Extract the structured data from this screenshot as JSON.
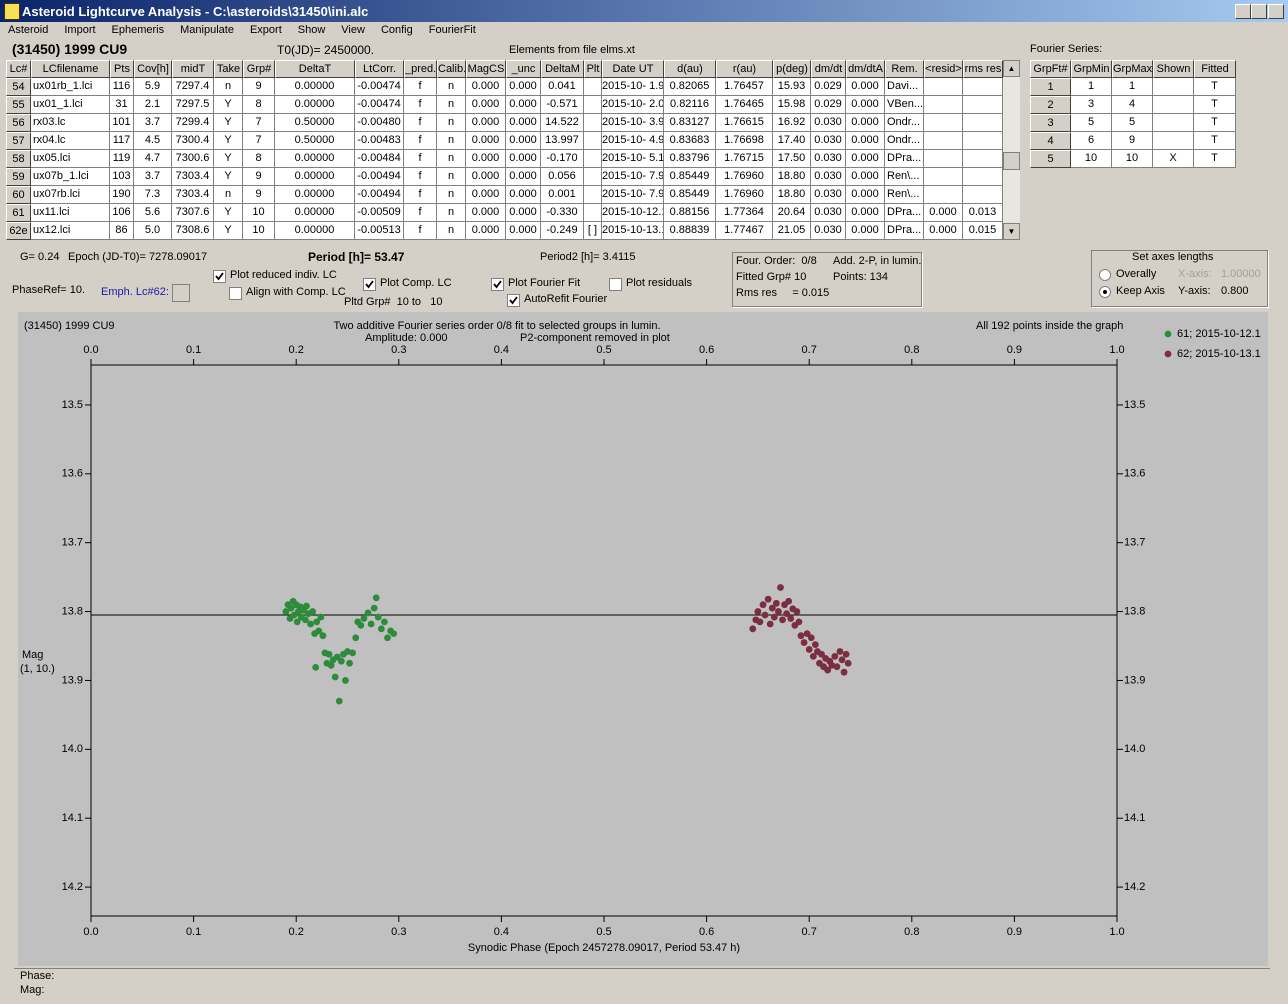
{
  "window": {
    "title": "Asteroid Lightcurve Analysis - C:\\asteroids\\31450\\ini.alc"
  },
  "menu": [
    "Asteroid",
    "Import",
    "Ephemeris",
    "Manipulate",
    "Export",
    "Show",
    "View",
    "Config",
    "FourierFit"
  ],
  "header": {
    "object": "(31450) 1999 CU9",
    "t0": "T0(JD)= 2450000.",
    "elements": "Elements from file elms.xt"
  },
  "table": {
    "columns": [
      "Lc#",
      "LCfilename",
      "Pts",
      "Cov[h]",
      "midT",
      "Take",
      "Grp#",
      "DeltaT",
      "LtCorr.",
      "_pred.",
      "Calib.",
      "MagCS",
      "_unc",
      "DeltaM",
      "Plt",
      "Date UT",
      "d(au)",
      "r(au)",
      "p(deg)",
      "dm/dt",
      "dm/dtA",
      "Rem.",
      "<resid>",
      "rms res"
    ],
    "rows": [
      [
        "54",
        "ux01rb_1.lci",
        "116",
        "5.9",
        "7297.4",
        "n",
        "9",
        "0.00000",
        "-0.00474",
        "f",
        "n",
        "0.000",
        "0.000",
        "0.041",
        null,
        "2015-10- 1.9",
        "0.82065",
        "1.76457",
        "15.93",
        "0.029",
        "0.000",
        "Davi...",
        null,
        null
      ],
      [
        "55",
        "ux01_1.lci",
        "31",
        "2.1",
        "7297.5",
        "Y",
        "8",
        "0.00000",
        "-0.00474",
        "f",
        "n",
        "0.000",
        "0.000",
        "-0.571",
        null,
        "2015-10- 2.0",
        "0.82116",
        "1.76465",
        "15.98",
        "0.029",
        "0.000",
        "VBen...",
        null,
        null
      ],
      [
        "56",
        "rx03.lc",
        "101",
        "3.7",
        "7299.4",
        "Y",
        "7",
        "0.50000",
        "-0.00480",
        "f",
        "n",
        "0.000",
        "0.000",
        "14.522",
        null,
        "2015-10- 3.9",
        "0.83127",
        "1.76615",
        "16.92",
        "0.030",
        "0.000",
        "Ondr...",
        null,
        null
      ],
      [
        "57",
        "rx04.lc",
        "117",
        "4.5",
        "7300.4",
        "Y",
        "7",
        "0.50000",
        "-0.00483",
        "f",
        "n",
        "0.000",
        "0.000",
        "13.997",
        null,
        "2015-10- 4.9",
        "0.83683",
        "1.76698",
        "17.40",
        "0.030",
        "0.000",
        "Ondr...",
        null,
        null
      ],
      [
        "58",
        "ux05.lci",
        "119",
        "4.7",
        "7300.6",
        "Y",
        "8",
        "0.00000",
        "-0.00484",
        "f",
        "n",
        "0.000",
        "0.000",
        "-0.170",
        null,
        "2015-10- 5.1",
        "0.83796",
        "1.76715",
        "17.50",
        "0.030",
        "0.000",
        "DPra...",
        null,
        null
      ],
      [
        "59",
        "ux07b_1.lci",
        "103",
        "3.7",
        "7303.4",
        "Y",
        "9",
        "0.00000",
        "-0.00494",
        "f",
        "n",
        "0.000",
        "0.000",
        "0.056",
        null,
        "2015-10- 7.9",
        "0.85449",
        "1.76960",
        "18.80",
        "0.030",
        "0.000",
        "Ren\\...",
        null,
        null
      ],
      [
        "60",
        "ux07rb.lci",
        "190",
        "7.3",
        "7303.4",
        "n",
        "9",
        "0.00000",
        "-0.00494",
        "f",
        "n",
        "0.000",
        "0.000",
        "0.001",
        null,
        "2015-10- 7.9",
        "0.85449",
        "1.76960",
        "18.80",
        "0.030",
        "0.000",
        "Ren\\...",
        null,
        null
      ],
      [
        "61",
        "ux11.lci",
        "106",
        "5.6",
        "7307.6",
        "Y",
        "10",
        "0.00000",
        "-0.00509",
        "f",
        "n",
        "0.000",
        "0.000",
        "-0.330",
        null,
        "2015-10-12.1",
        "0.88156",
        "1.77364",
        "20.64",
        "0.030",
        "0.000",
        "DPra...",
        "0.000",
        "0.013"
      ],
      [
        "62e",
        "ux12.lci",
        "86",
        "5.0",
        "7308.6",
        "Y",
        "10",
        "0.00000",
        "-0.00513",
        "f",
        "n",
        "0.000",
        "0.000",
        "-0.249",
        "[ ]",
        "2015-10-13.1",
        "0.88839",
        "1.77467",
        "21.05",
        "0.030",
        "0.000",
        "DPra...",
        "0.000",
        "0.015"
      ]
    ]
  },
  "fourier": {
    "title": "Fourier Series:",
    "columns": [
      "GrpFt#",
      "GrpMin",
      "GrpMax",
      "Shown",
      "Fitted"
    ],
    "rows": [
      [
        "1",
        "1",
        "1",
        null,
        "T"
      ],
      [
        "2",
        "3",
        "4",
        null,
        "T"
      ],
      [
        "3",
        "5",
        "5",
        null,
        "T"
      ],
      [
        "4",
        "6",
        "9",
        null,
        "T"
      ],
      [
        "5",
        "10",
        "10",
        "X",
        "T"
      ]
    ]
  },
  "info": {
    "g": "G= 0.24",
    "epoch": "Epoch (JD-T0)= 7278.09017",
    "period": "Period [h]= 53.47",
    "period2": "Period2 [h]= 3.4115",
    "phase_ref": "PhaseRef= 10.",
    "emph": "Emph. Lc#62:",
    "pltd": "Pltd Grp#  10 to   10"
  },
  "checkboxes": [
    {
      "label": "Plot reduced indiv. LC",
      "checked": true
    },
    {
      "label": "Align with Comp. LC",
      "checked": false
    },
    {
      "label": "Plot Comp. LC",
      "checked": true
    },
    {
      "label": "Plot Fourier Fit",
      "checked": true
    },
    {
      "label": "Plot residuals",
      "checked": false
    },
    {
      "label": "AutoRefit Fourier",
      "checked": true
    }
  ],
  "fit_info": [
    "Four. Order:  0/8",
    "Add. 2-P, in lumin.",
    "Fitted Grp# 10",
    "Points: 134",
    "Rms res     = 0.015"
  ],
  "axes_box": {
    "title": "Set axes lengths",
    "options": [
      {
        "label": "Overally",
        "selected": false,
        "axis_label": "X-axis:",
        "value": "1.00000",
        "enabled": false
      },
      {
        "label": "Keep Axis",
        "selected": true,
        "axis_label": "Y-axis:",
        "value": "0.800",
        "enabled": true
      }
    ]
  },
  "chart_data": {
    "type": "scatter",
    "title": "(31450) 1999 CU9",
    "subtitle": "Two additive Fourier series order 0/8 fit to selected groups in lumin.",
    "annotations": [
      "Amplitude: 0.000",
      "P2-component removed in plot",
      "All 192 points inside the graph"
    ],
    "xlabel": "Synodic Phase (Epoch 2457278.09017, Period 53.47 h)",
    "ylabel": [
      "Mag",
      "(1, 10.)"
    ],
    "xlim": [
      0,
      1
    ],
    "xticks": [
      {
        "value": 0,
        "label": "0.0"
      },
      0.1,
      0.2,
      0.3,
      0.4,
      0.5,
      0.6,
      0.7,
      0.8,
      0.9,
      {
        "value": 1,
        "label": "1.0"
      }
    ],
    "ylim": [
      13.442,
      14.242
    ],
    "y_inverted": true,
    "yticks": [
      13.5,
      13.6,
      13.7,
      13.8,
      13.9,
      {
        "value": 14,
        "label": "14.0"
      },
      14.1,
      14.2
    ],
    "fit_level": 13.805,
    "fit_color": "#000000",
    "background": "#c0c0c0",
    "legend": "right",
    "series": [
      {
        "name": "61; 2015-10-12.1",
        "color": "#2e8b3c",
        "x": [
          0.19,
          0.192,
          0.194,
          0.195,
          0.197,
          0.198,
          0.2,
          0.201,
          0.202,
          0.204,
          0.205,
          0.207,
          0.209,
          0.21,
          0.212,
          0.214,
          0.216,
          0.218,
          0.219,
          0.22,
          0.222,
          0.224,
          0.226,
          0.228,
          0.23,
          0.232,
          0.234,
          0.236,
          0.238,
          0.24,
          0.242,
          0.244,
          0.246,
          0.248,
          0.25,
          0.252,
          0.255,
          0.258,
          0.26,
          0.263,
          0.266,
          0.27,
          0.273,
          0.276,
          0.278,
          0.28,
          0.283,
          0.286,
          0.289,
          0.292,
          0.295
        ],
        "values": [
          13.8,
          13.79,
          13.81,
          13.795,
          13.785,
          13.805,
          13.79,
          13.815,
          13.8,
          13.793,
          13.808,
          13.798,
          13.812,
          13.792,
          13.803,
          13.818,
          13.8,
          13.832,
          13.881,
          13.815,
          13.828,
          13.808,
          13.835,
          13.86,
          13.875,
          13.862,
          13.878,
          13.87,
          13.895,
          13.866,
          13.93,
          13.872,
          13.862,
          13.9,
          13.858,
          13.875,
          13.86,
          13.838,
          13.815,
          13.82,
          13.81,
          13.802,
          13.818,
          13.795,
          13.78,
          13.808,
          13.825,
          13.815,
          13.838,
          13.828,
          13.832
        ]
      },
      {
        "name": "62; 2015-10-13.1",
        "color": "#7b2d42",
        "x": [
          0.645,
          0.648,
          0.65,
          0.652,
          0.655,
          0.657,
          0.66,
          0.662,
          0.664,
          0.666,
          0.668,
          0.67,
          0.672,
          0.674,
          0.676,
          0.678,
          0.68,
          0.682,
          0.684,
          0.686,
          0.688,
          0.69,
          0.692,
          0.695,
          0.698,
          0.7,
          0.702,
          0.704,
          0.706,
          0.708,
          0.71,
          0.712,
          0.714,
          0.716,
          0.718,
          0.72,
          0.722,
          0.725,
          0.727,
          0.73,
          0.732,
          0.734,
          0.736,
          0.738
        ],
        "values": [
          13.825,
          13.812,
          13.8,
          13.815,
          13.79,
          13.805,
          13.782,
          13.818,
          13.795,
          13.808,
          13.788,
          13.8,
          13.765,
          13.812,
          13.79,
          13.803,
          13.785,
          13.81,
          13.796,
          13.82,
          13.8,
          13.815,
          13.835,
          13.845,
          13.832,
          13.855,
          13.838,
          13.865,
          13.848,
          13.858,
          13.875,
          13.862,
          13.88,
          13.868,
          13.885,
          13.872,
          13.878,
          13.865,
          13.88,
          13.858,
          13.87,
          13.888,
          13.862,
          13.875
        ]
      }
    ]
  },
  "status": [
    "Phase:",
    "Mag:"
  ]
}
